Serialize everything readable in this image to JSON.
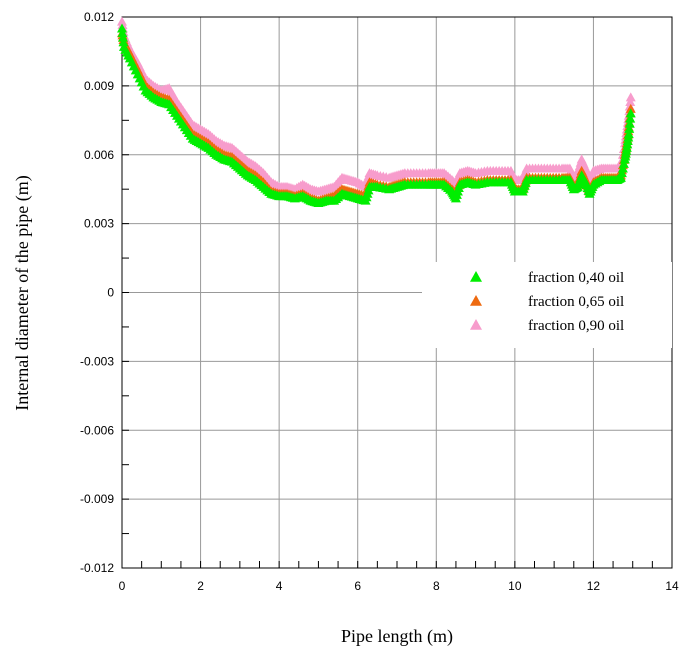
{
  "chart_data": {
    "type": "scatter",
    "title": "",
    "xlabel": "Pipe length (m)",
    "ylabel": "Internal diameter of  the  pipe  (m)",
    "xlim": [
      0,
      14
    ],
    "ylim": [
      -0.012,
      0.012
    ],
    "x_ticks": [
      "0",
      "2",
      "4",
      "6",
      "8",
      "10",
      "12",
      "14"
    ],
    "y_ticks": [
      "-0.012",
      "-0.009",
      "-0.006",
      "-0.003",
      "0",
      "0.003",
      "0.006",
      "0.009",
      "0.012"
    ],
    "grid": true,
    "legend_position": "right-middle",
    "marker": "triangle",
    "series": [
      {
        "name": "fraction  0,40 oil",
        "color": "#00ee00",
        "points": [
          [
            0.0,
            0.0115
          ],
          [
            0.05,
            0.0107
          ],
          [
            0.2,
            0.0102
          ],
          [
            0.4,
            0.0095
          ],
          [
            0.6,
            0.0088
          ],
          [
            0.8,
            0.0085
          ],
          [
            1.0,
            0.0083
          ],
          [
            1.2,
            0.0082
          ],
          [
            1.4,
            0.0077
          ],
          [
            1.6,
            0.0072
          ],
          [
            1.8,
            0.0067
          ],
          [
            2.0,
            0.0065
          ],
          [
            2.2,
            0.0063
          ],
          [
            2.4,
            0.006
          ],
          [
            2.6,
            0.0058
          ],
          [
            2.8,
            0.0057
          ],
          [
            3.0,
            0.0054
          ],
          [
            3.2,
            0.0051
          ],
          [
            3.4,
            0.0049
          ],
          [
            3.6,
            0.0046
          ],
          [
            3.8,
            0.0043
          ],
          [
            4.0,
            0.0042
          ],
          [
            4.2,
            0.0042
          ],
          [
            4.4,
            0.0041
          ],
          [
            4.6,
            0.0042
          ],
          [
            4.8,
            0.004
          ],
          [
            5.0,
            0.0039
          ],
          [
            5.2,
            0.004
          ],
          [
            5.4,
            0.004
          ],
          [
            5.6,
            0.0043
          ],
          [
            5.8,
            0.0042
          ],
          [
            6.0,
            0.0041
          ],
          [
            6.2,
            0.004
          ],
          [
            6.3,
            0.0046
          ],
          [
            6.5,
            0.0046
          ],
          [
            6.8,
            0.0045
          ],
          [
            7.0,
            0.0046
          ],
          [
            7.2,
            0.0047
          ],
          [
            7.5,
            0.0047
          ],
          [
            7.8,
            0.0047
          ],
          [
            8.0,
            0.0047
          ],
          [
            8.2,
            0.0047
          ],
          [
            8.4,
            0.0044
          ],
          [
            8.5,
            0.0041
          ],
          [
            8.6,
            0.0047
          ],
          [
            8.8,
            0.0048
          ],
          [
            9.0,
            0.0047
          ],
          [
            9.3,
            0.0048
          ],
          [
            9.6,
            0.0048
          ],
          [
            9.9,
            0.0048
          ],
          [
            10.0,
            0.0044
          ],
          [
            10.2,
            0.0044
          ],
          [
            10.3,
            0.0049
          ],
          [
            10.6,
            0.0049
          ],
          [
            10.9,
            0.0049
          ],
          [
            11.2,
            0.0049
          ],
          [
            11.4,
            0.0049
          ],
          [
            11.5,
            0.0045
          ],
          [
            11.6,
            0.0046
          ],
          [
            11.7,
            0.0051
          ],
          [
            11.8,
            0.0048
          ],
          [
            11.9,
            0.0043
          ],
          [
            12.0,
            0.0047
          ],
          [
            12.2,
            0.0049
          ],
          [
            12.4,
            0.0049
          ],
          [
            12.6,
            0.0049
          ],
          [
            12.7,
            0.005
          ],
          [
            12.8,
            0.0058
          ],
          [
            12.85,
            0.0063
          ],
          [
            12.9,
            0.0069
          ],
          [
            12.95,
            0.0078
          ]
        ]
      },
      {
        "name": "fraction  0,65 oil",
        "color": "#ee6a10",
        "points": [
          [
            0.0,
            0.0113
          ],
          [
            0.05,
            0.0109
          ],
          [
            0.2,
            0.0104
          ],
          [
            0.4,
            0.0097
          ],
          [
            0.6,
            0.009
          ],
          [
            0.8,
            0.0087
          ],
          [
            1.0,
            0.0085
          ],
          [
            1.2,
            0.0084
          ],
          [
            1.4,
            0.0079
          ],
          [
            1.6,
            0.0074
          ],
          [
            1.8,
            0.0069
          ],
          [
            2.0,
            0.0067
          ],
          [
            2.2,
            0.0065
          ],
          [
            2.4,
            0.0062
          ],
          [
            2.6,
            0.006
          ],
          [
            2.8,
            0.0059
          ],
          [
            3.0,
            0.0056
          ],
          [
            3.2,
            0.0053
          ],
          [
            3.4,
            0.0051
          ],
          [
            3.6,
            0.0048
          ],
          [
            3.8,
            0.0044
          ],
          [
            4.0,
            0.0043
          ],
          [
            4.2,
            0.0043
          ],
          [
            4.4,
            0.0042
          ],
          [
            4.6,
            0.0043
          ],
          [
            4.8,
            0.0041
          ],
          [
            5.0,
            0.004
          ],
          [
            5.2,
            0.0041
          ],
          [
            5.4,
            0.0042
          ],
          [
            5.6,
            0.0045
          ],
          [
            5.8,
            0.0044
          ],
          [
            6.0,
            0.0043
          ],
          [
            6.2,
            0.0042
          ],
          [
            6.3,
            0.0048
          ],
          [
            6.5,
            0.0047
          ],
          [
            6.8,
            0.0046
          ],
          [
            7.0,
            0.0047
          ],
          [
            7.2,
            0.0048
          ],
          [
            7.5,
            0.0048
          ],
          [
            7.8,
            0.0048
          ],
          [
            8.0,
            0.0048
          ],
          [
            8.2,
            0.0048
          ],
          [
            8.4,
            0.0045
          ],
          [
            8.5,
            0.0043
          ],
          [
            8.6,
            0.0048
          ],
          [
            8.8,
            0.0049
          ],
          [
            9.0,
            0.0048
          ],
          [
            9.3,
            0.0049
          ],
          [
            9.6,
            0.0049
          ],
          [
            9.9,
            0.0049
          ],
          [
            10.0,
            0.0045
          ],
          [
            10.2,
            0.0045
          ],
          [
            10.3,
            0.005
          ],
          [
            10.6,
            0.005
          ],
          [
            10.9,
            0.005
          ],
          [
            11.2,
            0.005
          ],
          [
            11.4,
            0.005
          ],
          [
            11.5,
            0.0046
          ],
          [
            11.6,
            0.0047
          ],
          [
            11.7,
            0.0053
          ],
          [
            11.8,
            0.0049
          ],
          [
            11.9,
            0.0044
          ],
          [
            12.0,
            0.0048
          ],
          [
            12.2,
            0.005
          ],
          [
            12.4,
            0.005
          ],
          [
            12.6,
            0.005
          ],
          [
            12.7,
            0.0051
          ],
          [
            12.8,
            0.006
          ],
          [
            12.85,
            0.0065
          ],
          [
            12.9,
            0.0072
          ],
          [
            12.95,
            0.008
          ]
        ]
      },
      {
        "name": "fraction  0,90 oil",
        "color": "#f79ccc",
        "points": [
          [
            0.0,
            0.0118
          ],
          [
            0.05,
            0.0112
          ],
          [
            0.2,
            0.0106
          ],
          [
            0.4,
            0.01
          ],
          [
            0.6,
            0.0093
          ],
          [
            0.8,
            0.009
          ],
          [
            1.0,
            0.0088
          ],
          [
            1.2,
            0.0089
          ],
          [
            1.4,
            0.0083
          ],
          [
            1.6,
            0.0078
          ],
          [
            1.8,
            0.0073
          ],
          [
            2.0,
            0.0071
          ],
          [
            2.2,
            0.0069
          ],
          [
            2.4,
            0.0066
          ],
          [
            2.6,
            0.0064
          ],
          [
            2.8,
            0.0063
          ],
          [
            3.0,
            0.006
          ],
          [
            3.2,
            0.0057
          ],
          [
            3.4,
            0.0055
          ],
          [
            3.6,
            0.0052
          ],
          [
            3.8,
            0.0048
          ],
          [
            4.0,
            0.0046
          ],
          [
            4.2,
            0.0046
          ],
          [
            4.4,
            0.0045
          ],
          [
            4.6,
            0.0047
          ],
          [
            4.8,
            0.0045
          ],
          [
            5.0,
            0.0044
          ],
          [
            5.2,
            0.0045
          ],
          [
            5.4,
            0.0046
          ],
          [
            5.6,
            0.005
          ],
          [
            5.8,
            0.0049
          ],
          [
            6.0,
            0.0048
          ],
          [
            6.2,
            0.0046
          ],
          [
            6.3,
            0.0052
          ],
          [
            6.5,
            0.0051
          ],
          [
            6.8,
            0.005
          ],
          [
            7.0,
            0.0051
          ],
          [
            7.2,
            0.0052
          ],
          [
            7.5,
            0.0052
          ],
          [
            7.8,
            0.0052
          ],
          [
            8.0,
            0.0052
          ],
          [
            8.2,
            0.0052
          ],
          [
            8.4,
            0.0049
          ],
          [
            8.5,
            0.0047
          ],
          [
            8.6,
            0.0052
          ],
          [
            8.8,
            0.0053
          ],
          [
            9.0,
            0.0052
          ],
          [
            9.3,
            0.0053
          ],
          [
            9.6,
            0.0053
          ],
          [
            9.9,
            0.0053
          ],
          [
            10.0,
            0.0049
          ],
          [
            10.2,
            0.0049
          ],
          [
            10.3,
            0.0054
          ],
          [
            10.6,
            0.0054
          ],
          [
            10.9,
            0.0054
          ],
          [
            11.2,
            0.0054
          ],
          [
            11.4,
            0.0054
          ],
          [
            11.5,
            0.005
          ],
          [
            11.6,
            0.0052
          ],
          [
            11.7,
            0.0058
          ],
          [
            11.8,
            0.0054
          ],
          [
            11.9,
            0.0049
          ],
          [
            12.0,
            0.0053
          ],
          [
            12.2,
            0.0054
          ],
          [
            12.4,
            0.0054
          ],
          [
            12.6,
            0.0054
          ],
          [
            12.7,
            0.0055
          ],
          [
            12.8,
            0.0065
          ],
          [
            12.85,
            0.0071
          ],
          [
            12.9,
            0.0077
          ],
          [
            12.95,
            0.0085
          ]
        ]
      }
    ]
  }
}
